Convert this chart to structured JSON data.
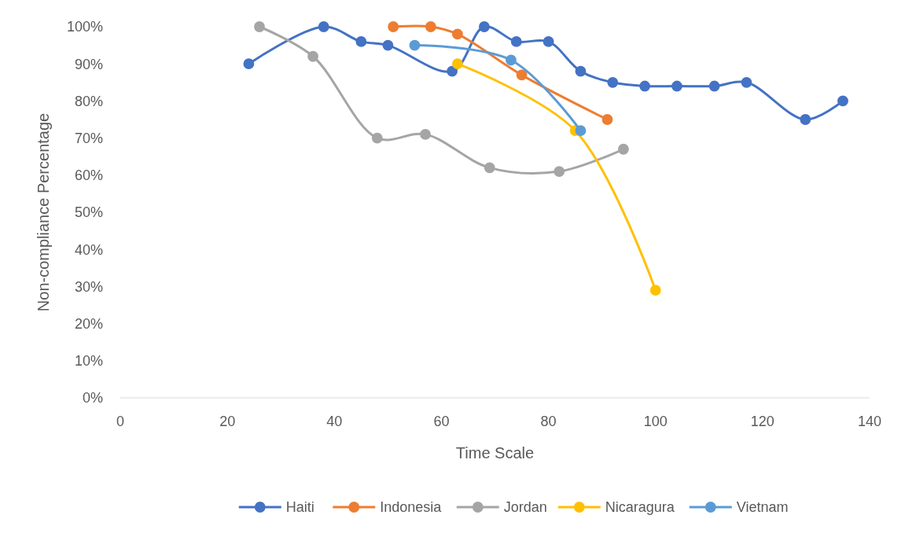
{
  "chart_data": {
    "type": "line",
    "xlabel": "Time Scale",
    "ylabel": "Non-compliance Percentage",
    "marker": "circle",
    "legend": "bottom",
    "grid": false,
    "xlim": [
      0,
      140
    ],
    "xticks": [
      0,
      20,
      40,
      60,
      80,
      100,
      120,
      140
    ],
    "ylim": [
      0,
      100
    ],
    "yticks": [
      {
        "value": 0,
        "label": "0%"
      },
      {
        "value": 10,
        "label": "10%"
      },
      {
        "value": 20,
        "label": "20%"
      },
      {
        "value": 30,
        "label": "30%"
      },
      {
        "value": 40,
        "label": "40%"
      },
      {
        "value": 50,
        "label": "50%"
      },
      {
        "value": 60,
        "label": "60%"
      },
      {
        "value": 70,
        "label": "70%"
      },
      {
        "value": 80,
        "label": "80%"
      },
      {
        "value": 90,
        "label": "90%"
      },
      {
        "value": 100,
        "label": "100%"
      }
    ],
    "series": [
      {
        "name": "Haiti",
        "color": "#4472c4",
        "x": [
          24,
          38,
          45,
          50,
          62,
          68,
          74,
          80,
          86,
          92,
          98,
          104,
          111,
          117,
          128,
          135
        ],
        "values": [
          90,
          100,
          96,
          95,
          88,
          100,
          96,
          96,
          88,
          85,
          84,
          84,
          84,
          85,
          75,
          80
        ]
      },
      {
        "name": "Indonesia",
        "color": "#ed7d31",
        "x": [
          51,
          58,
          63,
          75,
          91
        ],
        "values": [
          100,
          100,
          98,
          87,
          75
        ]
      },
      {
        "name": "Jordan",
        "color": "#a5a5a5",
        "x": [
          26,
          36,
          48,
          57,
          69,
          82,
          94
        ],
        "values": [
          100,
          92,
          70,
          71,
          62,
          61,
          67
        ]
      },
      {
        "name": "Nicaragura",
        "color": "#ffc000",
        "x": [
          63,
          85,
          100
        ],
        "values": [
          90,
          72,
          29
        ]
      },
      {
        "name": "Vietnam",
        "color": "#5b9bd5",
        "x": [
          55,
          73,
          86
        ],
        "values": [
          95,
          91,
          72
        ]
      }
    ]
  }
}
